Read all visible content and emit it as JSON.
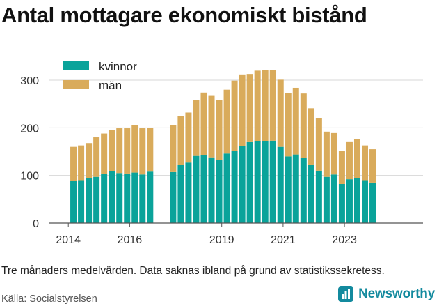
{
  "title": "Antal mottagare ekonomiskt bistånd",
  "footnote": "Tre månaders medelvärden. Data saknas ibland på grund av statistikssekretess.",
  "source": "Källa: Socialstyrelsen",
  "brand": "Newsworthy",
  "brand_icon": "newsworthy-logo-icon",
  "colors": {
    "kvinnor": "#0aa39a",
    "man": "#d9ab5b",
    "grid": "#d7d7d7",
    "brand": "#138a9e"
  },
  "chart_data": {
    "type": "bar",
    "stacked": true,
    "x_axis_type": "time",
    "xticks": [
      "2014",
      "2016",
      "2019",
      "2021",
      "2023"
    ],
    "yticks": [
      "0",
      "100",
      "200",
      "300"
    ],
    "ylim": [
      0,
      330
    ],
    "grid": true,
    "legend_position": "top-left",
    "series": [
      {
        "name": "kvinnor",
        "points": [
          [
            "2014-03",
            88
          ],
          [
            "2014-06",
            90
          ],
          [
            "2014-09",
            94
          ],
          [
            "2014-12",
            97
          ],
          [
            "2015-03",
            103
          ],
          [
            "2015-06",
            109
          ],
          [
            "2015-09",
            105
          ],
          [
            "2015-12",
            104
          ],
          [
            "2016-03",
            106
          ],
          [
            "2016-06",
            102
          ],
          [
            "2016-09",
            108
          ],
          [
            "2017-06",
            107
          ],
          [
            "2017-09",
            122
          ],
          [
            "2017-12",
            127
          ],
          [
            "2018-03",
            141
          ],
          [
            "2018-06",
            143
          ],
          [
            "2018-09",
            138
          ],
          [
            "2018-12",
            133
          ],
          [
            "2019-03",
            146
          ],
          [
            "2019-06",
            151
          ],
          [
            "2019-09",
            162
          ],
          [
            "2019-12",
            170
          ],
          [
            "2020-03",
            172
          ],
          [
            "2020-06",
            172
          ],
          [
            "2020-09",
            173
          ],
          [
            "2020-12",
            160
          ],
          [
            "2021-03",
            140
          ],
          [
            "2021-06",
            144
          ],
          [
            "2021-09",
            137
          ],
          [
            "2021-12",
            123
          ],
          [
            "2022-03",
            110
          ],
          [
            "2022-06",
            97
          ],
          [
            "2022-09",
            102
          ],
          [
            "2022-12",
            82
          ],
          [
            "2023-03",
            92
          ],
          [
            "2023-06",
            94
          ],
          [
            "2023-09",
            90
          ],
          [
            "2023-12",
            85
          ]
        ]
      },
      {
        "name": "män",
        "points": [
          [
            "2014-03",
            72
          ],
          [
            "2014-06",
            73
          ],
          [
            "2014-09",
            74
          ],
          [
            "2014-12",
            83
          ],
          [
            "2015-03",
            85
          ],
          [
            "2015-06",
            87
          ],
          [
            "2015-09",
            94
          ],
          [
            "2015-12",
            95
          ],
          [
            "2016-03",
            100
          ],
          [
            "2016-06",
            97
          ],
          [
            "2016-09",
            92
          ],
          [
            "2017-06",
            98
          ],
          [
            "2017-09",
            103
          ],
          [
            "2017-12",
            105
          ],
          [
            "2018-03",
            118
          ],
          [
            "2018-06",
            131
          ],
          [
            "2018-09",
            129
          ],
          [
            "2018-12",
            126
          ],
          [
            "2019-03",
            134
          ],
          [
            "2019-06",
            148
          ],
          [
            "2019-09",
            150
          ],
          [
            "2019-12",
            143
          ],
          [
            "2020-03",
            148
          ],
          [
            "2020-06",
            149
          ],
          [
            "2020-09",
            148
          ],
          [
            "2020-12",
            141
          ],
          [
            "2021-03",
            133
          ],
          [
            "2021-06",
            140
          ],
          [
            "2021-09",
            135
          ],
          [
            "2021-12",
            118
          ],
          [
            "2022-03",
            111
          ],
          [
            "2022-06",
            95
          ],
          [
            "2022-09",
            87
          ],
          [
            "2022-12",
            70
          ],
          [
            "2023-03",
            78
          ],
          [
            "2023-06",
            83
          ],
          [
            "2023-09",
            73
          ],
          [
            "2023-12",
            70
          ]
        ]
      }
    ]
  }
}
